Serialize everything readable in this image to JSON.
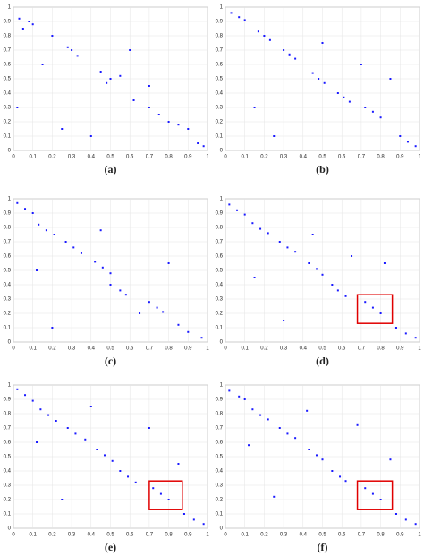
{
  "chart_data": [
    {
      "type": "scatter",
      "caption": "(a)",
      "color": "#1a1aff",
      "grid": true,
      "x": [
        0.03,
        0.08,
        0.1,
        0.05,
        0.2,
        0.3,
        0.33,
        0.28,
        0.45,
        0.5,
        0.48,
        0.55,
        0.62,
        0.7,
        0.75,
        0.8,
        0.85,
        0.9,
        0.95,
        0.98,
        0.15,
        0.4,
        0.6,
        0.02,
        0.25,
        0.7
      ],
      "y": [
        0.92,
        0.9,
        0.88,
        0.85,
        0.8,
        0.7,
        0.66,
        0.72,
        0.55,
        0.5,
        0.47,
        0.52,
        0.35,
        0.3,
        0.25,
        0.2,
        0.18,
        0.15,
        0.05,
        0.03,
        0.6,
        0.1,
        0.7,
        0.3,
        0.15,
        0.45
      ],
      "xlim": [
        0,
        1
      ],
      "ylim": [
        0,
        1
      ],
      "xticks": [
        0,
        0.1,
        0.2,
        0.3,
        0.4,
        0.5,
        0.6,
        0.7,
        0.8,
        0.9,
        1
      ],
      "yticks": [
        0,
        0.1,
        0.2,
        0.3,
        0.4,
        0.5,
        0.6,
        0.7,
        0.8,
        0.9,
        1
      ]
    },
    {
      "type": "scatter",
      "caption": "(b)",
      "color": "#1a1aff",
      "grid": true,
      "x": [
        0.03,
        0.07,
        0.1,
        0.17,
        0.2,
        0.23,
        0.3,
        0.33,
        0.36,
        0.45,
        0.48,
        0.51,
        0.58,
        0.61,
        0.64,
        0.72,
        0.76,
        0.8,
        0.9,
        0.94,
        0.98,
        0.15,
        0.5,
        0.7,
        0.25,
        0.85
      ],
      "y": [
        0.96,
        0.93,
        0.91,
        0.83,
        0.8,
        0.77,
        0.7,
        0.67,
        0.64,
        0.54,
        0.5,
        0.47,
        0.4,
        0.37,
        0.34,
        0.3,
        0.27,
        0.23,
        0.1,
        0.06,
        0.03,
        0.3,
        0.75,
        0.6,
        0.1,
        0.5
      ],
      "xlim": [
        0,
        1
      ],
      "ylim": [
        0,
        1
      ],
      "xticks": [
        0,
        0.1,
        0.2,
        0.3,
        0.4,
        0.5,
        0.6,
        0.7,
        0.8,
        0.9,
        1
      ],
      "yticks": [
        0,
        0.1,
        0.2,
        0.3,
        0.4,
        0.5,
        0.6,
        0.7,
        0.8,
        0.9,
        1
      ]
    },
    {
      "type": "scatter",
      "caption": "(c)",
      "color": "#1a1aff",
      "grid": true,
      "x": [
        0.02,
        0.06,
        0.1,
        0.13,
        0.17,
        0.21,
        0.27,
        0.31,
        0.35,
        0.42,
        0.46,
        0.5,
        0.5,
        0.55,
        0.58,
        0.7,
        0.74,
        0.77,
        0.85,
        0.9,
        0.97,
        0.12,
        0.45,
        0.65,
        0.2,
        0.8
      ],
      "y": [
        0.97,
        0.93,
        0.9,
        0.82,
        0.78,
        0.75,
        0.7,
        0.66,
        0.62,
        0.56,
        0.52,
        0.48,
        0.4,
        0.36,
        0.33,
        0.28,
        0.24,
        0.21,
        0.12,
        0.07,
        0.03,
        0.5,
        0.78,
        0.2,
        0.1,
        0.55
      ],
      "xlim": [
        0,
        1
      ],
      "ylim": [
        0,
        1
      ],
      "xticks": [
        0,
        0.1,
        0.2,
        0.3,
        0.4,
        0.5,
        0.6,
        0.7,
        0.8,
        0.9,
        1
      ],
      "yticks": [
        0,
        0.1,
        0.2,
        0.3,
        0.4,
        0.5,
        0.6,
        0.7,
        0.8,
        0.9,
        1
      ]
    },
    {
      "type": "scatter",
      "caption": "(d)",
      "color": "#1a1aff",
      "grid": true,
      "x": [
        0.02,
        0.06,
        0.1,
        0.14,
        0.18,
        0.22,
        0.28,
        0.32,
        0.36,
        0.43,
        0.47,
        0.5,
        0.55,
        0.58,
        0.62,
        0.72,
        0.76,
        0.8,
        0.88,
        0.93,
        0.98,
        0.15,
        0.45,
        0.65,
        0.3,
        0.82
      ],
      "y": [
        0.96,
        0.92,
        0.89,
        0.83,
        0.79,
        0.76,
        0.7,
        0.66,
        0.63,
        0.55,
        0.51,
        0.47,
        0.4,
        0.36,
        0.32,
        0.28,
        0.24,
        0.2,
        0.1,
        0.06,
        0.03,
        0.45,
        0.75,
        0.6,
        0.15,
        0.55
      ],
      "xlim": [
        0,
        1
      ],
      "ylim": [
        0,
        1
      ],
      "xticks": [
        0,
        0.1,
        0.2,
        0.3,
        0.4,
        0.5,
        0.6,
        0.7,
        0.8,
        0.9,
        1
      ],
      "yticks": [
        0,
        0.1,
        0.2,
        0.3,
        0.4,
        0.5,
        0.6,
        0.7,
        0.8,
        0.9,
        1
      ],
      "highlight_box": {
        "x": [
          0.68,
          0.86
        ],
        "y": [
          0.13,
          0.33
        ],
        "color": "#e00000"
      }
    },
    {
      "type": "scatter",
      "caption": "(e)",
      "color": "#1a1aff",
      "grid": true,
      "x": [
        0.02,
        0.06,
        0.1,
        0.14,
        0.18,
        0.22,
        0.28,
        0.32,
        0.37,
        0.43,
        0.47,
        0.51,
        0.55,
        0.59,
        0.63,
        0.72,
        0.76,
        0.8,
        0.88,
        0.93,
        0.98,
        0.12,
        0.4,
        0.7,
        0.25,
        0.85
      ],
      "y": [
        0.97,
        0.93,
        0.89,
        0.83,
        0.79,
        0.75,
        0.7,
        0.66,
        0.62,
        0.55,
        0.51,
        0.47,
        0.4,
        0.36,
        0.32,
        0.28,
        0.24,
        0.2,
        0.1,
        0.06,
        0.03,
        0.6,
        0.85,
        0.7,
        0.2,
        0.45
      ],
      "xlim": [
        0,
        1
      ],
      "ylim": [
        0,
        1
      ],
      "xticks": [
        0,
        0.1,
        0.2,
        0.3,
        0.4,
        0.5,
        0.6,
        0.7,
        0.8,
        0.9,
        1
      ],
      "yticks": [
        0,
        0.1,
        0.2,
        0.3,
        0.4,
        0.5,
        0.6,
        0.7,
        0.8,
        0.9,
        1
      ],
      "highlight_box": {
        "x": [
          0.7,
          0.87
        ],
        "y": [
          0.13,
          0.33
        ],
        "color": "#e00000"
      }
    },
    {
      "type": "scatter",
      "caption": "(f)",
      "color": "#1a1aff",
      "grid": true,
      "x": [
        0.02,
        0.07,
        0.1,
        0.14,
        0.18,
        0.22,
        0.28,
        0.32,
        0.36,
        0.43,
        0.47,
        0.5,
        0.55,
        0.59,
        0.62,
        0.72,
        0.76,
        0.8,
        0.88,
        0.93,
        0.98,
        0.12,
        0.42,
        0.68,
        0.25,
        0.85
      ],
      "y": [
        0.96,
        0.92,
        0.9,
        0.83,
        0.79,
        0.76,
        0.7,
        0.66,
        0.63,
        0.55,
        0.51,
        0.48,
        0.4,
        0.36,
        0.33,
        0.28,
        0.24,
        0.2,
        0.1,
        0.06,
        0.03,
        0.58,
        0.82,
        0.72,
        0.22,
        0.48
      ],
      "xlim": [
        0,
        1
      ],
      "ylim": [
        0,
        1
      ],
      "xticks": [
        0,
        0.1,
        0.2,
        0.3,
        0.4,
        0.5,
        0.6,
        0.7,
        0.8,
        0.9,
        1
      ],
      "yticks": [
        0,
        0.1,
        0.2,
        0.3,
        0.4,
        0.5,
        0.6,
        0.7,
        0.8,
        0.9,
        1
      ],
      "highlight_box": {
        "x": [
          0.68,
          0.86
        ],
        "y": [
          0.13,
          0.33
        ],
        "color": "#e00000"
      }
    }
  ]
}
